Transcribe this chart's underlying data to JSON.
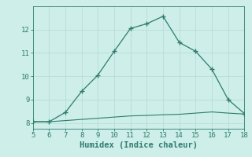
{
  "x": [
    5,
    6,
    7,
    8,
    9,
    10,
    11,
    12,
    13,
    14,
    15,
    16,
    17,
    18
  ],
  "y_main": [
    8.05,
    8.05,
    8.45,
    9.35,
    10.05,
    11.07,
    12.05,
    12.25,
    12.57,
    11.45,
    11.07,
    10.3,
    9.0,
    8.4
  ],
  "y_flat": [
    8.05,
    8.05,
    8.1,
    8.15,
    8.2,
    8.25,
    8.3,
    8.32,
    8.35,
    8.37,
    8.42,
    8.47,
    8.42,
    8.38
  ],
  "line_color": "#2e7b6e",
  "bg_color": "#cdeee9",
  "grid_major_color": "#b8ddd8",
  "grid_minor_color": "#d8efec",
  "xlabel": "Humidex (Indice chaleur)",
  "xlim": [
    5,
    18
  ],
  "ylim": [
    7.75,
    13.0
  ],
  "xticks": [
    5,
    6,
    7,
    8,
    9,
    10,
    11,
    12,
    13,
    14,
    15,
    16,
    17,
    18
  ],
  "yticks": [
    8,
    9,
    10,
    11,
    12
  ],
  "xlabel_fontsize": 7.5,
  "tick_fontsize": 6.5
}
